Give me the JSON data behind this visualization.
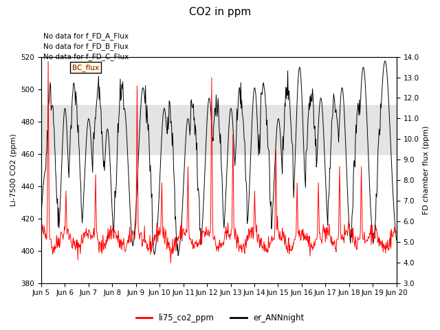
{
  "title": "CO2 in ppm",
  "ylabel_left": "Li-7500 CO2 (ppm)",
  "ylabel_right": "FD chamber flux (ppm)",
  "ylim_left": [
    380,
    520
  ],
  "ylim_right": [
    3.0,
    14.0
  ],
  "shade_band": [
    460,
    490
  ],
  "xtick_labels": [
    "Jun 5",
    "Jun 6",
    "Jun 7",
    "Jun 8",
    "Jun 9",
    "Jun 10",
    "Jun 11",
    "Jun 12",
    "Jun 13",
    "Jun 14",
    "Jun 15",
    "Jun 16",
    "Jun 17",
    "Jun 18",
    "Jun 19",
    "Jun 20"
  ],
  "no_data_texts": [
    "No data for f_FD_A_Flux",
    "No data for f_FD_B_Flux",
    "No data for f_FD_C_Flux"
  ],
  "legend_bc_label": "BC_flux",
  "legend_line1": "li75_co2_ppm",
  "legend_line2": "er_ANNnight",
  "line1_color": "#ff0000",
  "line2_color": "#000000",
  "shade_color": "#d3d3d3",
  "background_color": "#ffffff",
  "title_fontsize": 11,
  "axis_label_fontsize": 8,
  "tick_fontsize": 7.5,
  "annotation_fontsize": 7.5
}
